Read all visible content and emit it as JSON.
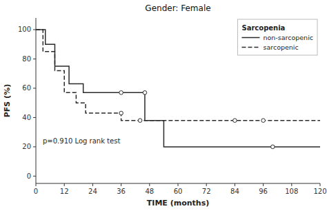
{
  "chart_data": {
    "type": "line",
    "title": "Gender: Female",
    "x_label": "TIME (months)",
    "y_label": "PFS (%)",
    "legend_title": "Sarcopenia",
    "annotation": "p=0.910 Log rank test",
    "xlim": [
      0,
      120
    ],
    "ylim": [
      -5,
      108
    ],
    "xticks": [
      0,
      12,
      24,
      36,
      48,
      60,
      72,
      84,
      96,
      108,
      120
    ],
    "yticks": [
      0,
      20,
      40,
      60,
      80,
      100
    ],
    "grid": false,
    "legend": "upper right",
    "series": [
      {
        "name": "non-sarcopenic",
        "color": "#2a2a2a",
        "line_style": "solid",
        "x": [
          0,
          4,
          4,
          8,
          8,
          14,
          14,
          20,
          20,
          36,
          36,
          46,
          46,
          54,
          54,
          120
        ],
        "values": [
          100,
          100,
          90,
          90,
          75,
          75,
          63,
          63,
          57,
          57,
          57,
          57,
          38,
          38,
          20,
          20
        ],
        "censor_x": [
          36,
          46,
          100
        ],
        "censor_values": [
          57,
          57,
          20
        ]
      },
      {
        "name": "sarcopenic",
        "color": "#2a2a2a",
        "line_style": "dashed",
        "x": [
          0,
          3,
          3,
          8,
          8,
          12,
          12,
          17,
          17,
          21,
          21,
          36,
          36,
          44,
          44,
          84,
          84,
          96,
          96,
          120
        ],
        "values": [
          100,
          100,
          85,
          85,
          72,
          72,
          57,
          57,
          50,
          50,
          43,
          43,
          38,
          38,
          38,
          38,
          38,
          38,
          38,
          38
        ],
        "censor_x": [
          36,
          44,
          84,
          96
        ],
        "censor_values": [
          43,
          38,
          38,
          38
        ]
      }
    ]
  }
}
